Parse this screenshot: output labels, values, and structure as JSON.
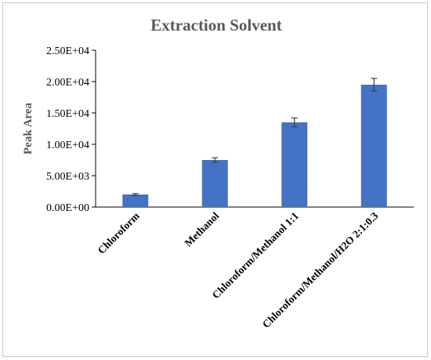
{
  "chart_data": {
    "type": "bar",
    "title": "Extraction Solvent",
    "xlabel": "",
    "ylabel": "Peak Area",
    "categories": [
      "Chloroform",
      "Methanol",
      "Chloroform/Methanol 1:1",
      "Chloroform/Methanol/H2O 2:1:0.3"
    ],
    "values": [
      2000,
      7500,
      13500,
      19500
    ],
    "errors": [
      150,
      350,
      700,
      1000
    ],
    "ylim": [
      0,
      25000
    ],
    "yticks": [
      0,
      5000,
      10000,
      15000,
      20000,
      25000
    ],
    "ytick_labels": [
      "0.00E+00",
      "5.00E+03",
      "1.00E+04",
      "1.50E+04",
      "2.00E+04",
      "2.50E+04"
    ],
    "grid": false,
    "legend": "none",
    "bar_color": "#4472c4",
    "error_color": "#404040"
  }
}
